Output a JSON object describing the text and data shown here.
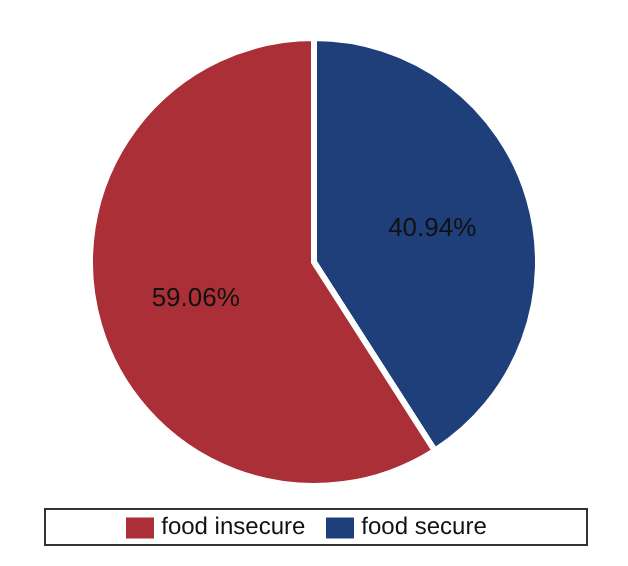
{
  "chart_data": {
    "type": "pie",
    "categories": [
      "food secure",
      "food insecure"
    ],
    "values": [
      40.94,
      59.06
    ],
    "colors": [
      "#1f3f7a",
      "#ab2f36"
    ],
    "value_labels": [
      "40.94%",
      "59.06%"
    ],
    "legend": "bottom"
  }
}
